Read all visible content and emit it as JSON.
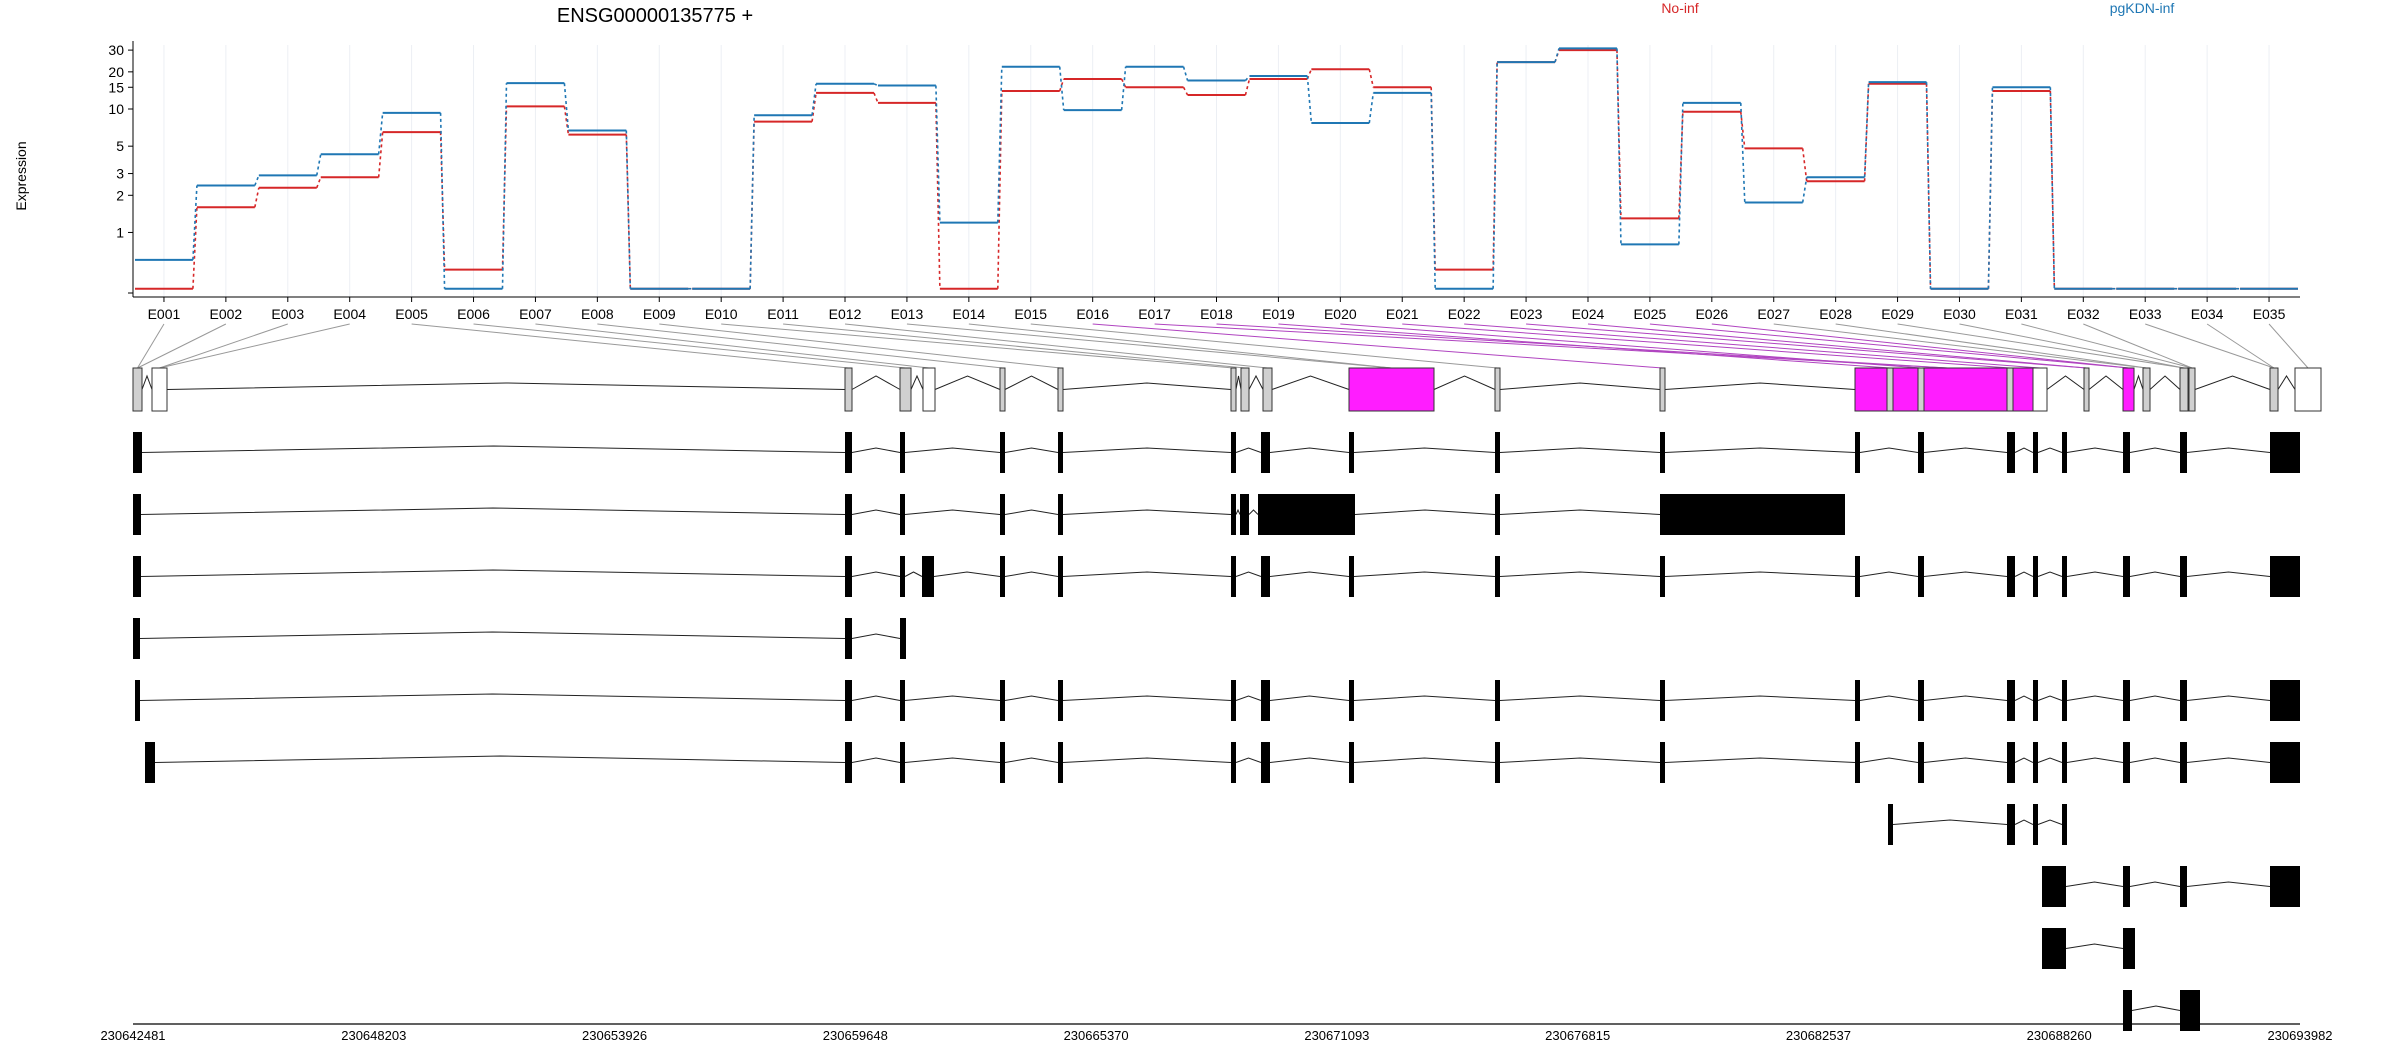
{
  "chart_data": {
    "type": "line",
    "title": "ENSG00000135775 +",
    "ylabel": "Expression",
    "y_scale": "log",
    "ylim": [
      0.3,
      33
    ],
    "y_ticks": [
      1,
      2,
      3,
      5,
      10,
      15,
      20,
      30
    ],
    "grid": "vertical",
    "legend_placement": "top",
    "colors": {
      "No-inf": "#d62728",
      "pgKDN-inf": "#1f77b4",
      "highlight": "#ff00ff"
    },
    "categories": [
      "E001",
      "E002",
      "E003",
      "E004",
      "E005",
      "E006",
      "E007",
      "E008",
      "E009",
      "E010",
      "E011",
      "E012",
      "E013",
      "E014",
      "E015",
      "E016",
      "E017",
      "E018",
      "E019",
      "E020",
      "E021",
      "E022",
      "E023",
      "E024",
      "E025",
      "E026",
      "E027",
      "E028",
      "E029",
      "E030",
      "E031",
      "E032",
      "E033",
      "E034",
      "E035"
    ],
    "series": [
      {
        "name": "No-inf",
        "color": "#d62728",
        "values": [
          0.35,
          1.6,
          2.3,
          2.8,
          6.5,
          0.5,
          10.5,
          6.2,
          0.35,
          0.35,
          7.9,
          13.5,
          11.2,
          0.35,
          14,
          17.5,
          15,
          13,
          17.5,
          21,
          15,
          0.5,
          24,
          30,
          1.3,
          9.5,
          4.8,
          2.6,
          16,
          0.35,
          14,
          0.35,
          0.35,
          0.35,
          0.35
        ]
      },
      {
        "name": "pgKDN-inf",
        "color": "#1f77b4",
        "values": [
          0.6,
          2.4,
          2.9,
          4.3,
          9.3,
          0.35,
          16.2,
          6.7,
          0.35,
          0.35,
          8.9,
          16,
          15.5,
          1.2,
          22,
          9.8,
          22,
          17,
          18.5,
          7.7,
          13.5,
          0.35,
          24,
          31,
          0.8,
          11.2,
          1.75,
          2.8,
          16.5,
          0.35,
          15,
          0.35,
          0.35,
          0.35,
          0.35
        ]
      }
    ],
    "highlighted_exons": [
      "E016",
      "E017",
      "E018",
      "E019",
      "E020",
      "E021",
      "E022",
      "E023",
      "E024",
      "E025",
      "E026",
      "E027",
      "E028",
      "E029",
      "E030",
      "E031"
    ]
  },
  "gene_model": {
    "coordinate_ticks": [
      "230642481",
      "230648203",
      "230653926",
      "230659648",
      "230665370",
      "230671093",
      "230676815",
      "230682537",
      "230688260",
      "230693982"
    ],
    "transcript_count": 11
  }
}
